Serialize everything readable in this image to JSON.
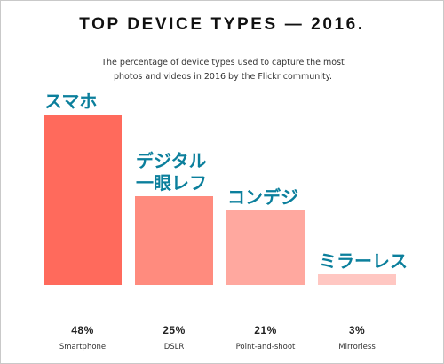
{
  "chart_data": {
    "type": "bar",
    "title": "TOP DEVICE TYPES — 2016.",
    "subtitle_lines": [
      "The percentage of device types used to capture the most",
      "photos and videos in 2016 by the Flickr community."
    ],
    "categories": [
      "Smartphone",
      "DSLR",
      "Point-and-shoot",
      "Mirrorless"
    ],
    "values": [
      48,
      25,
      21,
      3
    ],
    "value_labels": [
      "48%",
      "25%",
      "21%",
      "3%"
    ],
    "japanese_labels": [
      [
        "スマホ"
      ],
      [
        "デジタル",
        "一眼レフ"
      ],
      [
        "コンデジ"
      ],
      [
        "ミラーレス"
      ]
    ],
    "ylim": [
      0,
      48
    ],
    "grid": false,
    "legend": "none",
    "colors": [
      "#ff6a5c",
      "#ff8b7e",
      "#ffa89f",
      "#ffc7c2"
    ],
    "label_color": "#0b7f9c"
  }
}
